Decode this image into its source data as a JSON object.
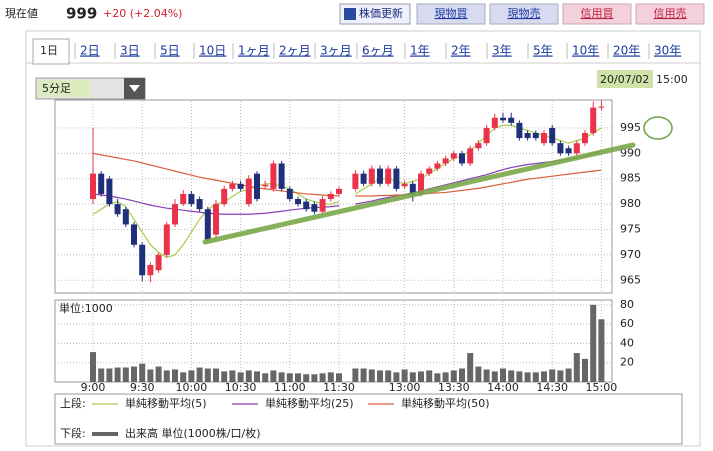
{
  "header": {
    "label": "現在値",
    "price": "999",
    "change": "+20 (+2.04%)"
  },
  "buttons": [
    "株価更新",
    "現物買",
    "現物売",
    "信用買",
    "信用売"
  ],
  "tabs": [
    "1日",
    "2日",
    "3日",
    "5日",
    "10日",
    "1ヶ月",
    "2ヶ月",
    "3ヶ月",
    "6ヶ月",
    "1年",
    "2年",
    "3年",
    "5年",
    "10年",
    "20年",
    "30年"
  ],
  "selector": "5分足",
  "date": "20/07/02",
  "time": "15:00",
  "chart_data": [
    {
      "type": "candlestick",
      "legend_label": "上段:",
      "up_color": "#e8334a",
      "down_color": "#1f2f7a",
      "ylim": [
        962.5,
        1000.5
      ],
      "yticks": [
        965,
        970,
        975,
        980,
        985,
        990,
        995
      ],
      "grid": true,
      "open": [
        981,
        986,
        985,
        980,
        979,
        976,
        972,
        966,
        967,
        970,
        976,
        980,
        982,
        981,
        979,
        974,
        980,
        983,
        984,
        980,
        986,
        983.5,
        983,
        988,
        983,
        981,
        980.5,
        980,
        978.5,
        981,
        982,
        null,
        983,
        986,
        984,
        987,
        984,
        987,
        983.5,
        984,
        982,
        986,
        987,
        988,
        989,
        990,
        988,
        991,
        992,
        995,
        997,
        997,
        996,
        994,
        994,
        992,
        995,
        992,
        991,
        990,
        992,
        994,
        999
      ],
      "high": [
        995,
        986.5,
        985.5,
        981,
        979.5,
        976.5,
        972.5,
        968.5,
        970.5,
        976.5,
        981,
        982.8,
        982.6,
        981.5,
        979.5,
        980.8,
        983.6,
        984.6,
        984.6,
        985.7,
        986.5,
        984.6,
        988.6,
        988.5,
        983.5,
        981.5,
        981,
        980.5,
        981.6,
        982.5,
        983.5,
        null,
        986.7,
        986.6,
        987.6,
        987.6,
        987.6,
        987.5,
        984.6,
        984.5,
        986.6,
        987.5,
        988.5,
        989.5,
        990.5,
        990.5,
        991.5,
        992.6,
        995.6,
        997.8,
        998,
        998,
        996.5,
        994.5,
        994.5,
        994.6,
        995.6,
        992.5,
        991.5,
        992.6,
        994.6,
        1000.2,
        1000.4
      ],
      "low": [
        980,
        981.5,
        979.5,
        977.5,
        975.5,
        971.5,
        964.8,
        964.6,
        966.5,
        969.5,
        975.5,
        979.6,
        979.5,
        978.5,
        972.5,
        973.5,
        979.5,
        982.5,
        982.5,
        979.5,
        980.5,
        983,
        982.5,
        982.5,
        980.5,
        979.5,
        978.5,
        978,
        978,
        980.5,
        981.5,
        null,
        982.5,
        983.5,
        983.5,
        983.5,
        983.5,
        982.5,
        983,
        980.5,
        981.5,
        985.5,
        986.5,
        987.5,
        988.5,
        987.5,
        987.5,
        990.5,
        991.5,
        994.5,
        996,
        995.5,
        992.5,
        992.5,
        992.5,
        991.5,
        991.5,
        989.5,
        989.5,
        989.5,
        991.5,
        993.5,
        998.5
      ],
      "close": [
        986,
        982,
        980,
        978,
        976,
        972,
        966,
        968,
        970,
        976,
        980,
        982,
        980,
        979,
        973,
        980,
        983,
        984,
        983,
        985,
        981,
        983.8,
        988,
        983,
        981,
        980,
        979,
        978.5,
        981,
        982,
        983,
        null,
        986,
        984,
        987,
        984,
        987,
        983,
        984,
        982,
        986,
        987,
        988,
        989,
        990,
        988,
        991,
        992,
        995,
        997,
        996.5,
        996,
        993,
        993,
        993,
        994,
        992,
        990,
        990,
        992,
        994,
        999,
        999.2
      ],
      "series": [
        {
          "name": "単純移動平均(5)",
          "color": "#a8cc4c",
          "values": [
            978,
            979,
            980,
            980.5,
            979.5,
            977,
            974.5,
            972,
            970.5,
            969.5,
            970,
            972,
            974.5,
            977,
            979,
            980,
            980.5,
            981.5,
            982.5,
            983,
            983.5,
            984,
            984,
            983.5,
            983,
            982,
            981,
            980.5,
            980,
            980,
            980.5,
            null,
            982,
            983,
            984,
            985,
            985,
            984.5,
            984,
            984.5,
            985,
            986,
            987,
            988,
            989,
            989.5,
            990.5,
            992,
            993.5,
            995,
            995.5,
            995.5,
            995,
            994.5,
            994,
            993.5,
            993,
            992.5,
            992,
            992.5,
            993,
            994,
            995
          ]
        },
        {
          "name": "単純移動平均(25)",
          "color": "#8a3fb8",
          "values": [
            982,
            981.8,
            981.6,
            981.3,
            981,
            980.6,
            980.2,
            979.8,
            979.5,
            979.2,
            979,
            978.8,
            978.6,
            978.4,
            978.2,
            978.1,
            978,
            978,
            978,
            978,
            978.1,
            978.2,
            978.4,
            978.6,
            978.8,
            979,
            979.2,
            979.3,
            979.4,
            979.5,
            979.7,
            null,
            980,
            980.3,
            980.6,
            981,
            981.3,
            981.6,
            981.9,
            982.2,
            982.6,
            983,
            983.4,
            983.8,
            984.2,
            984.6,
            985,
            985.4,
            985.8,
            986.3,
            986.8,
            987.2,
            987.5,
            987.8,
            988,
            988.2,
            988.4,
            988.6,
            988.8,
            989.1,
            989.5,
            989.9,
            990.5
          ]
        },
        {
          "name": "単純移動平均(50)",
          "color": "#d9603a",
          "values": [
            990,
            989.7,
            989.4,
            989.1,
            988.8,
            988.5,
            988.1,
            987.7,
            987.3,
            986.9,
            986.5,
            986.1,
            985.7,
            985.3,
            985,
            984.7,
            984.4,
            984.1,
            983.8,
            983.5,
            983.2,
            983,
            982.8,
            982.6,
            982.4,
            982.2,
            982,
            981.9,
            981.8,
            981.7,
            981.6,
            null,
            981.6,
            981.6,
            981.6,
            981.7,
            981.7,
            981.8,
            981.8,
            981.9,
            982,
            982.1,
            982.2,
            982.3,
            982.5,
            982.7,
            982.9,
            983.1,
            983.4,
            983.7,
            984,
            984.3,
            984.6,
            984.9,
            985.1,
            985.3,
            985.5,
            985.7,
            985.9,
            986.1,
            986.3,
            986.5,
            986.7
          ]
        }
      ]
    },
    {
      "type": "bar",
      "legend_label": "下段:",
      "ylabel": "単位:1000",
      "ylim": [
        0,
        85
      ],
      "yticks": [
        20,
        40,
        60,
        80
      ],
      "grid": true,
      "categories": [
        "9:00",
        null,
        null,
        null,
        null,
        null,
        "9:30",
        null,
        null,
        null,
        null,
        null,
        "10:00",
        null,
        null,
        null,
        null,
        null,
        "10:30",
        null,
        null,
        null,
        null,
        null,
        "11:00",
        null,
        null,
        null,
        null,
        null,
        "11:30",
        null,
        null,
        null,
        null,
        null,
        null,
        null,
        "13:00",
        null,
        null,
        null,
        null,
        null,
        "13:30",
        null,
        null,
        null,
        null,
        null,
        "14:00",
        null,
        null,
        null,
        null,
        null,
        "14:30",
        null,
        null,
        null,
        null,
        null,
        "15:00"
      ],
      "series": [
        {
          "name": "出来高 単位(1000株/口/枚)",
          "color": "#666666",
          "values": [
            31,
            14,
            14,
            15,
            15,
            16,
            19,
            13,
            16,
            12,
            13,
            10,
            12,
            15,
            14,
            14,
            11,
            12,
            10,
            12,
            11,
            9,
            12,
            10,
            9,
            9,
            8,
            8,
            9,
            10,
            9,
            null,
            14,
            14,
            13,
            12,
            12,
            10,
            13,
            10,
            11,
            12,
            9,
            10,
            12,
            14,
            30,
            16,
            13,
            11,
            14,
            12,
            11,
            10,
            10,
            11,
            13,
            12,
            14,
            30,
            24,
            80,
            65
          ]
        }
      ]
    }
  ]
}
